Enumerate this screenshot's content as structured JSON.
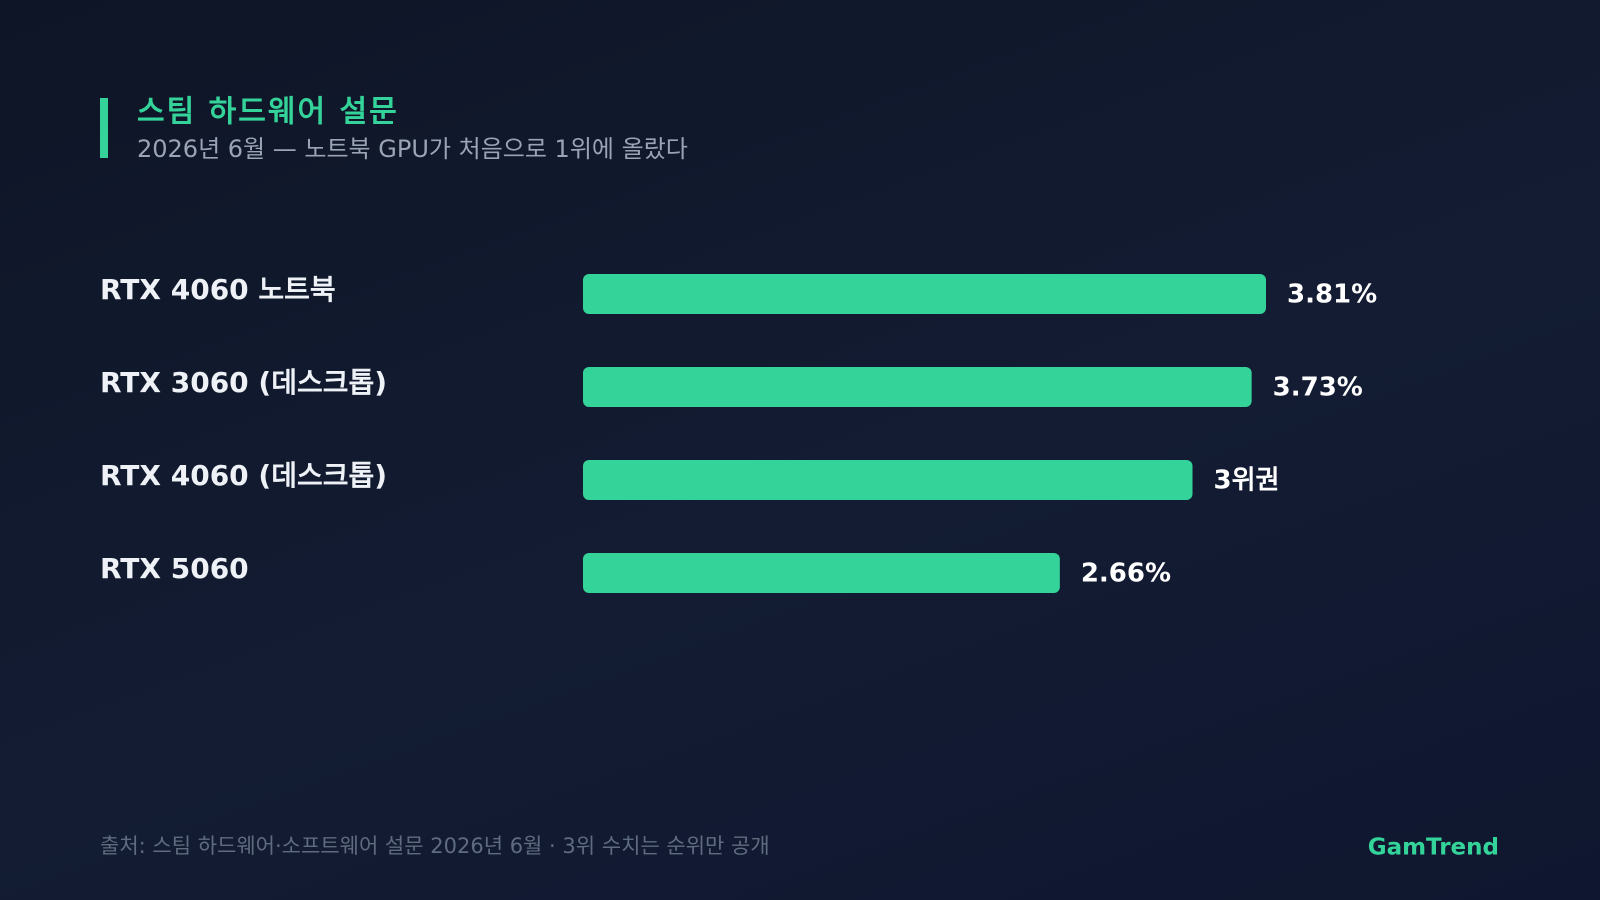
{
  "chart_data": {
    "type": "bar",
    "orientation": "horizontal",
    "title": "스팀 하드웨어 설문",
    "subtitle": "2026년 6월 — 노트북 GPU가 처음으로 1위에 올랐다",
    "categories": [
      "RTX 4060 노트북",
      "RTX 3060 (데스크톱)",
      "RTX 4060 (데스크톱)",
      "RTX 5060"
    ],
    "values": [
      3.81,
      3.73,
      3.4,
      2.66
    ],
    "value_labels": [
      "3.81%",
      "3.73%",
      "3위권",
      "2.66%"
    ],
    "color": "#34d399",
    "source": "출처: 스팀 하드웨어·소프트웨어 설문 2026년 6월 · 3위 수치는 순위만 공개",
    "brand": "GamTrend"
  }
}
